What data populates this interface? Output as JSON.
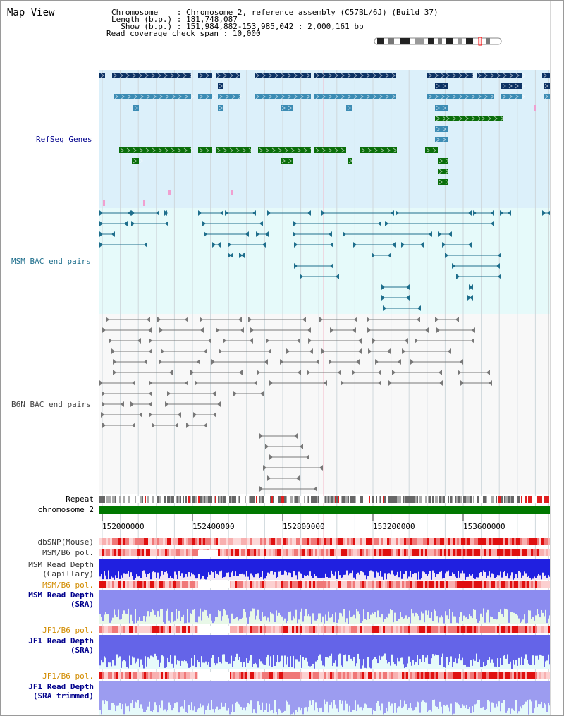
{
  "header": {
    "title": "Map View",
    "chromosome_label": "Chromosome",
    "chromosome_value": "Chromosome 2, reference assembly (C57BL/6J) (Build 37)",
    "length_label": "Length (b.p.)",
    "length_value": "181,748,087",
    "show_label": "Show (b.p.)",
    "show_value": "151,984,882-153,985,042 : 2,000,161 bp",
    "coverage_label": "Read coverage check span",
    "coverage_value": "10,000"
  },
  "tracks": {
    "refseq": "RefSeq Genes",
    "msm_bac": "MSM BAC end pairs",
    "b6n_bac": "B6N BAC end pairs",
    "repeat": "Repeat",
    "chromosome": "chromosome 2",
    "dbsnp": "dbSNP(Mouse)",
    "msm_b6_pol_1": "MSM/B6 pol.",
    "msm_read_depth_cap_1": "MSM Read Depth",
    "msm_read_depth_cap_2": "(Capillary)",
    "msm_b6_pol_2": "MSM/B6 pol.",
    "msm_read_depth_sra_1": "MSM Read Depth",
    "msm_read_depth_sra_2": "(SRA)",
    "jf1_b6_pol_1": "JF1/B6 pol.",
    "jf1_read_depth_sra_1": "JF1 Read Depth",
    "jf1_read_depth_sra_2": "(SRA)",
    "jf1_b6_pol_2": "JF1/B6 pol.",
    "jf1_read_depth_trim_1": "JF1 Read Depth",
    "jf1_read_depth_trim_2": "(SRA trimmed)"
  },
  "axis": {
    "ticks": [
      "152000000",
      "152400000",
      "152800000",
      "153200000",
      "153600000"
    ]
  },
  "colors": {
    "refseq_bg": "#dcf0fa",
    "msm_bg": "#e6fafa",
    "dark_gene": "#0c3264",
    "mid_gene": "#3c8cb4",
    "green_gene": "#0a6e0a",
    "bac": "#1e6e8c",
    "b6n": "#787878",
    "chromosome": "#007800",
    "label_blue": "#00008c",
    "label_orange": "#d28c00"
  }
}
